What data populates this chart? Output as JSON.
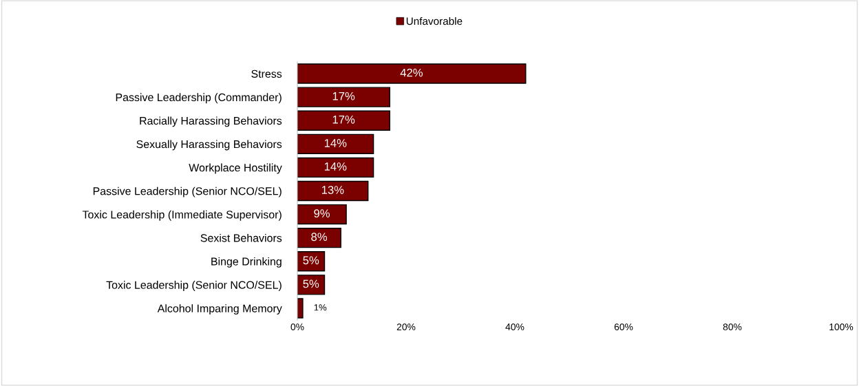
{
  "chart_data": {
    "type": "bar",
    "orientation": "horizontal",
    "categories": [
      "Stress",
      "Passive Leadership (Commander)",
      "Racially Harassing Behaviors",
      "Sexually Harassing Behaviors",
      "Workplace Hostility",
      "Passive Leadership (Senior NCO/SEL)",
      "Toxic Leadership (Immediate Supervisor)",
      "Sexist Behaviors",
      "Binge Drinking",
      "Toxic Leadership (Senior NCO/SEL)",
      "Alcohol Imparing Memory"
    ],
    "series": [
      {
        "name": "Unfavorable",
        "color": "#7b0000",
        "values": [
          42,
          17,
          17,
          14,
          14,
          13,
          9,
          8,
          5,
          5,
          1
        ],
        "value_labels": [
          "42%",
          "17%",
          "17%",
          "14%",
          "14%",
          "13%",
          "9%",
          "8%",
          "5%",
          "5%",
          "1%"
        ]
      }
    ],
    "xlim": [
      0,
      100
    ],
    "xticks": [
      {
        "value": 0,
        "label": "0%"
      },
      {
        "value": 20,
        "label": "20%"
      },
      {
        "value": 40,
        "label": "40%"
      },
      {
        "value": 60,
        "label": "60%"
      },
      {
        "value": 80,
        "label": "80%"
      },
      {
        "value": 100,
        "label": "100%"
      }
    ],
    "grid": false,
    "legend": "top"
  }
}
